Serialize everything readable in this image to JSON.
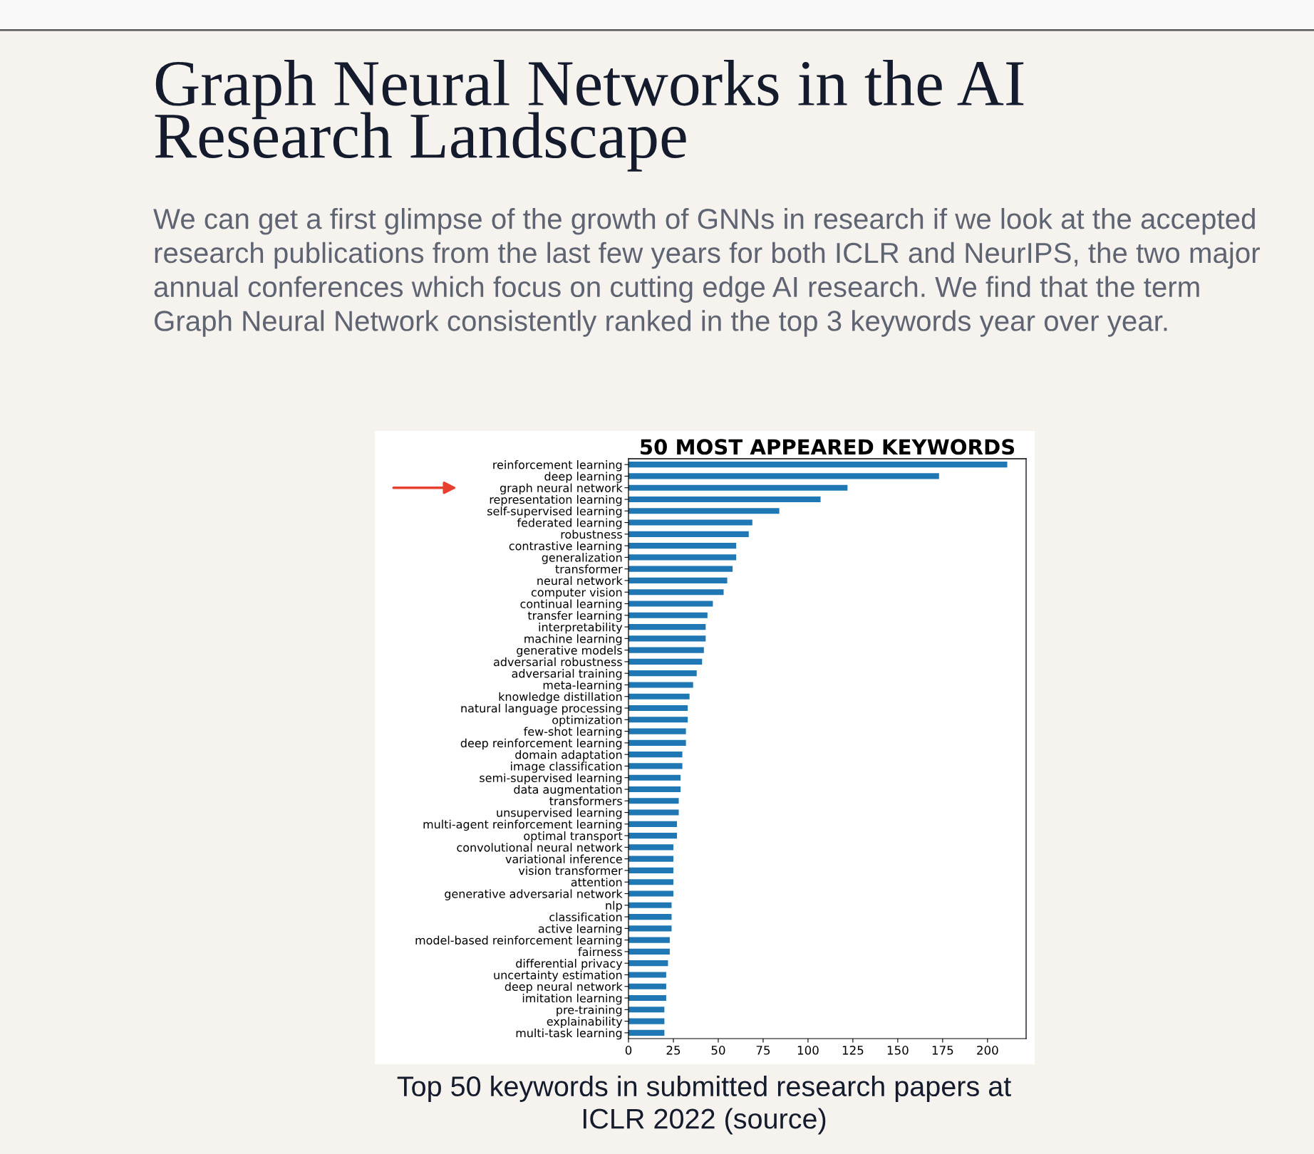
{
  "chart_data": {
    "type": "bar",
    "orientation": "horizontal",
    "title": "50 MOST APPEARED KEYWORDS",
    "categories": [
      "reinforcement learning",
      "deep learning",
      "graph neural network",
      "representation learning",
      "self-supervised learning",
      "federated learning",
      "robustness",
      "contrastive learning",
      "generalization",
      "transformer",
      "neural network",
      "computer vision",
      "continual learning",
      "transfer learning",
      "interpretability",
      "machine learning",
      "generative models",
      "adversarial robustness",
      "adversarial training",
      "meta-learning",
      "knowledge distillation",
      "natural language processing",
      "optimization",
      "few-shot learning",
      "deep reinforcement learning",
      "domain adaptation",
      "image classification",
      "semi-supervised learning",
      "data augmentation",
      "transformers",
      "unsupervised learning",
      "multi-agent reinforcement learning",
      "optimal transport",
      "convolutional neural network",
      "variational inference",
      "vision transformer",
      "attention",
      "generative adversarial network",
      "nlp",
      "classification",
      "active learning",
      "model-based reinforcement learning",
      "fairness",
      "differential privacy",
      "uncertainty estimation",
      "deep neural network",
      "imitation learning",
      "pre-training",
      "explainability",
      "multi-task learning"
    ],
    "values": [
      211,
      173,
      122,
      107,
      84,
      69,
      67,
      60,
      60,
      58,
      55,
      53,
      47,
      44,
      43,
      43,
      42,
      41,
      38,
      36,
      34,
      33,
      33,
      32,
      32,
      30,
      30,
      29,
      29,
      28,
      28,
      27,
      27,
      25,
      25,
      25,
      25,
      25,
      24,
      24,
      24,
      23,
      23,
      22,
      21,
      21,
      21,
      20,
      20,
      20
    ],
    "color": "#1f77b4",
    "xlim": [
      0,
      221.5
    ],
    "xticks": [
      0,
      25,
      50,
      75,
      100,
      125,
      150,
      175,
      200
    ],
    "annotations": [
      "Graph Neural Networks in the AI Research Landscape",
      "We can get a first glimpse of the growth of GNNs in research if we look at the accepted research publications from the last few years for both ICLR and NeurIPS, the two major annual conferences which focus on cutting edge AI research. We find that the term Graph Neural Network consistently ranked in the top 3 keywords year over year.",
      {
        "y": "graph neural network"
      },
      "Top 50 keywords in submitted research papers at ICLR 2022 (source)"
    ]
  }
}
